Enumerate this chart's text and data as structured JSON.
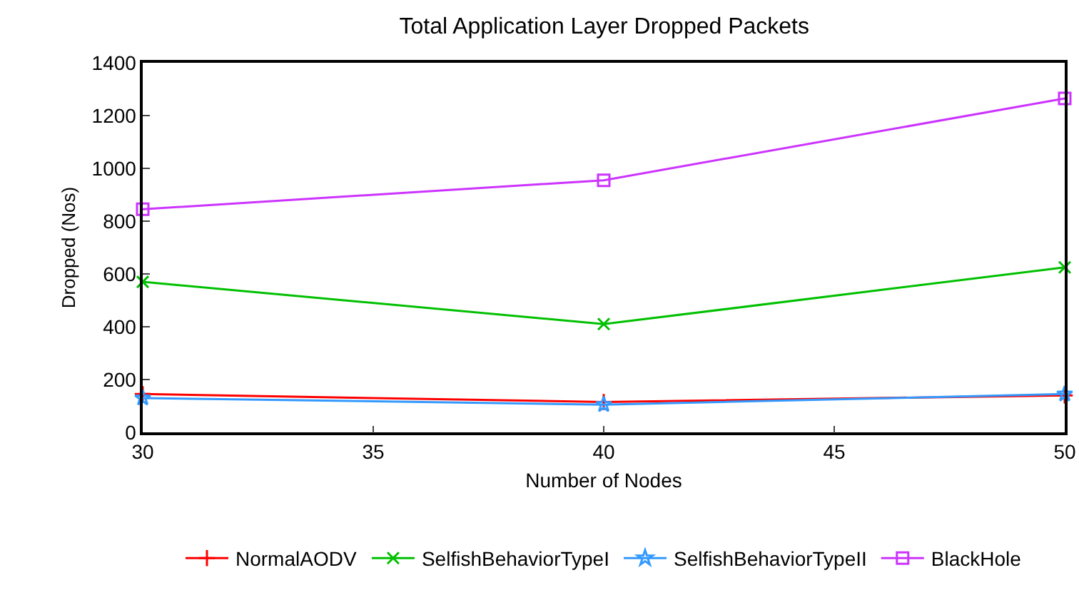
{
  "chart_data": {
    "type": "line",
    "title": "Total Application Layer Dropped Packets",
    "xlabel": "Number of Nodes",
    "ylabel": "Dropped (Nos)",
    "x": [
      30,
      40,
      50
    ],
    "xlim": [
      30,
      50
    ],
    "xticks": [
      30,
      35,
      40,
      45,
      50
    ],
    "ylim": [
      0,
      1400
    ],
    "yticks": [
      0,
      200,
      400,
      600,
      800,
      1000,
      1200,
      1400
    ],
    "grid": false,
    "legend": "bottom",
    "line_style": "solid",
    "series": [
      {
        "name": "NormalAODV",
        "color": "#ff0000",
        "marker": "cross",
        "values": [
          145,
          115,
          140
        ]
      },
      {
        "name": "SelfishBehaviorTypeI",
        "color": "#00c000",
        "marker": "x",
        "values": [
          570,
          410,
          625
        ]
      },
      {
        "name": "SelfishBehaviorTypeII",
        "color": "#3399ff",
        "marker": "star",
        "values": [
          130,
          105,
          145
        ]
      },
      {
        "name": "BlackHole",
        "color": "#cc33ff",
        "marker": "square",
        "values": [
          845,
          955,
          1265
        ]
      }
    ]
  }
}
